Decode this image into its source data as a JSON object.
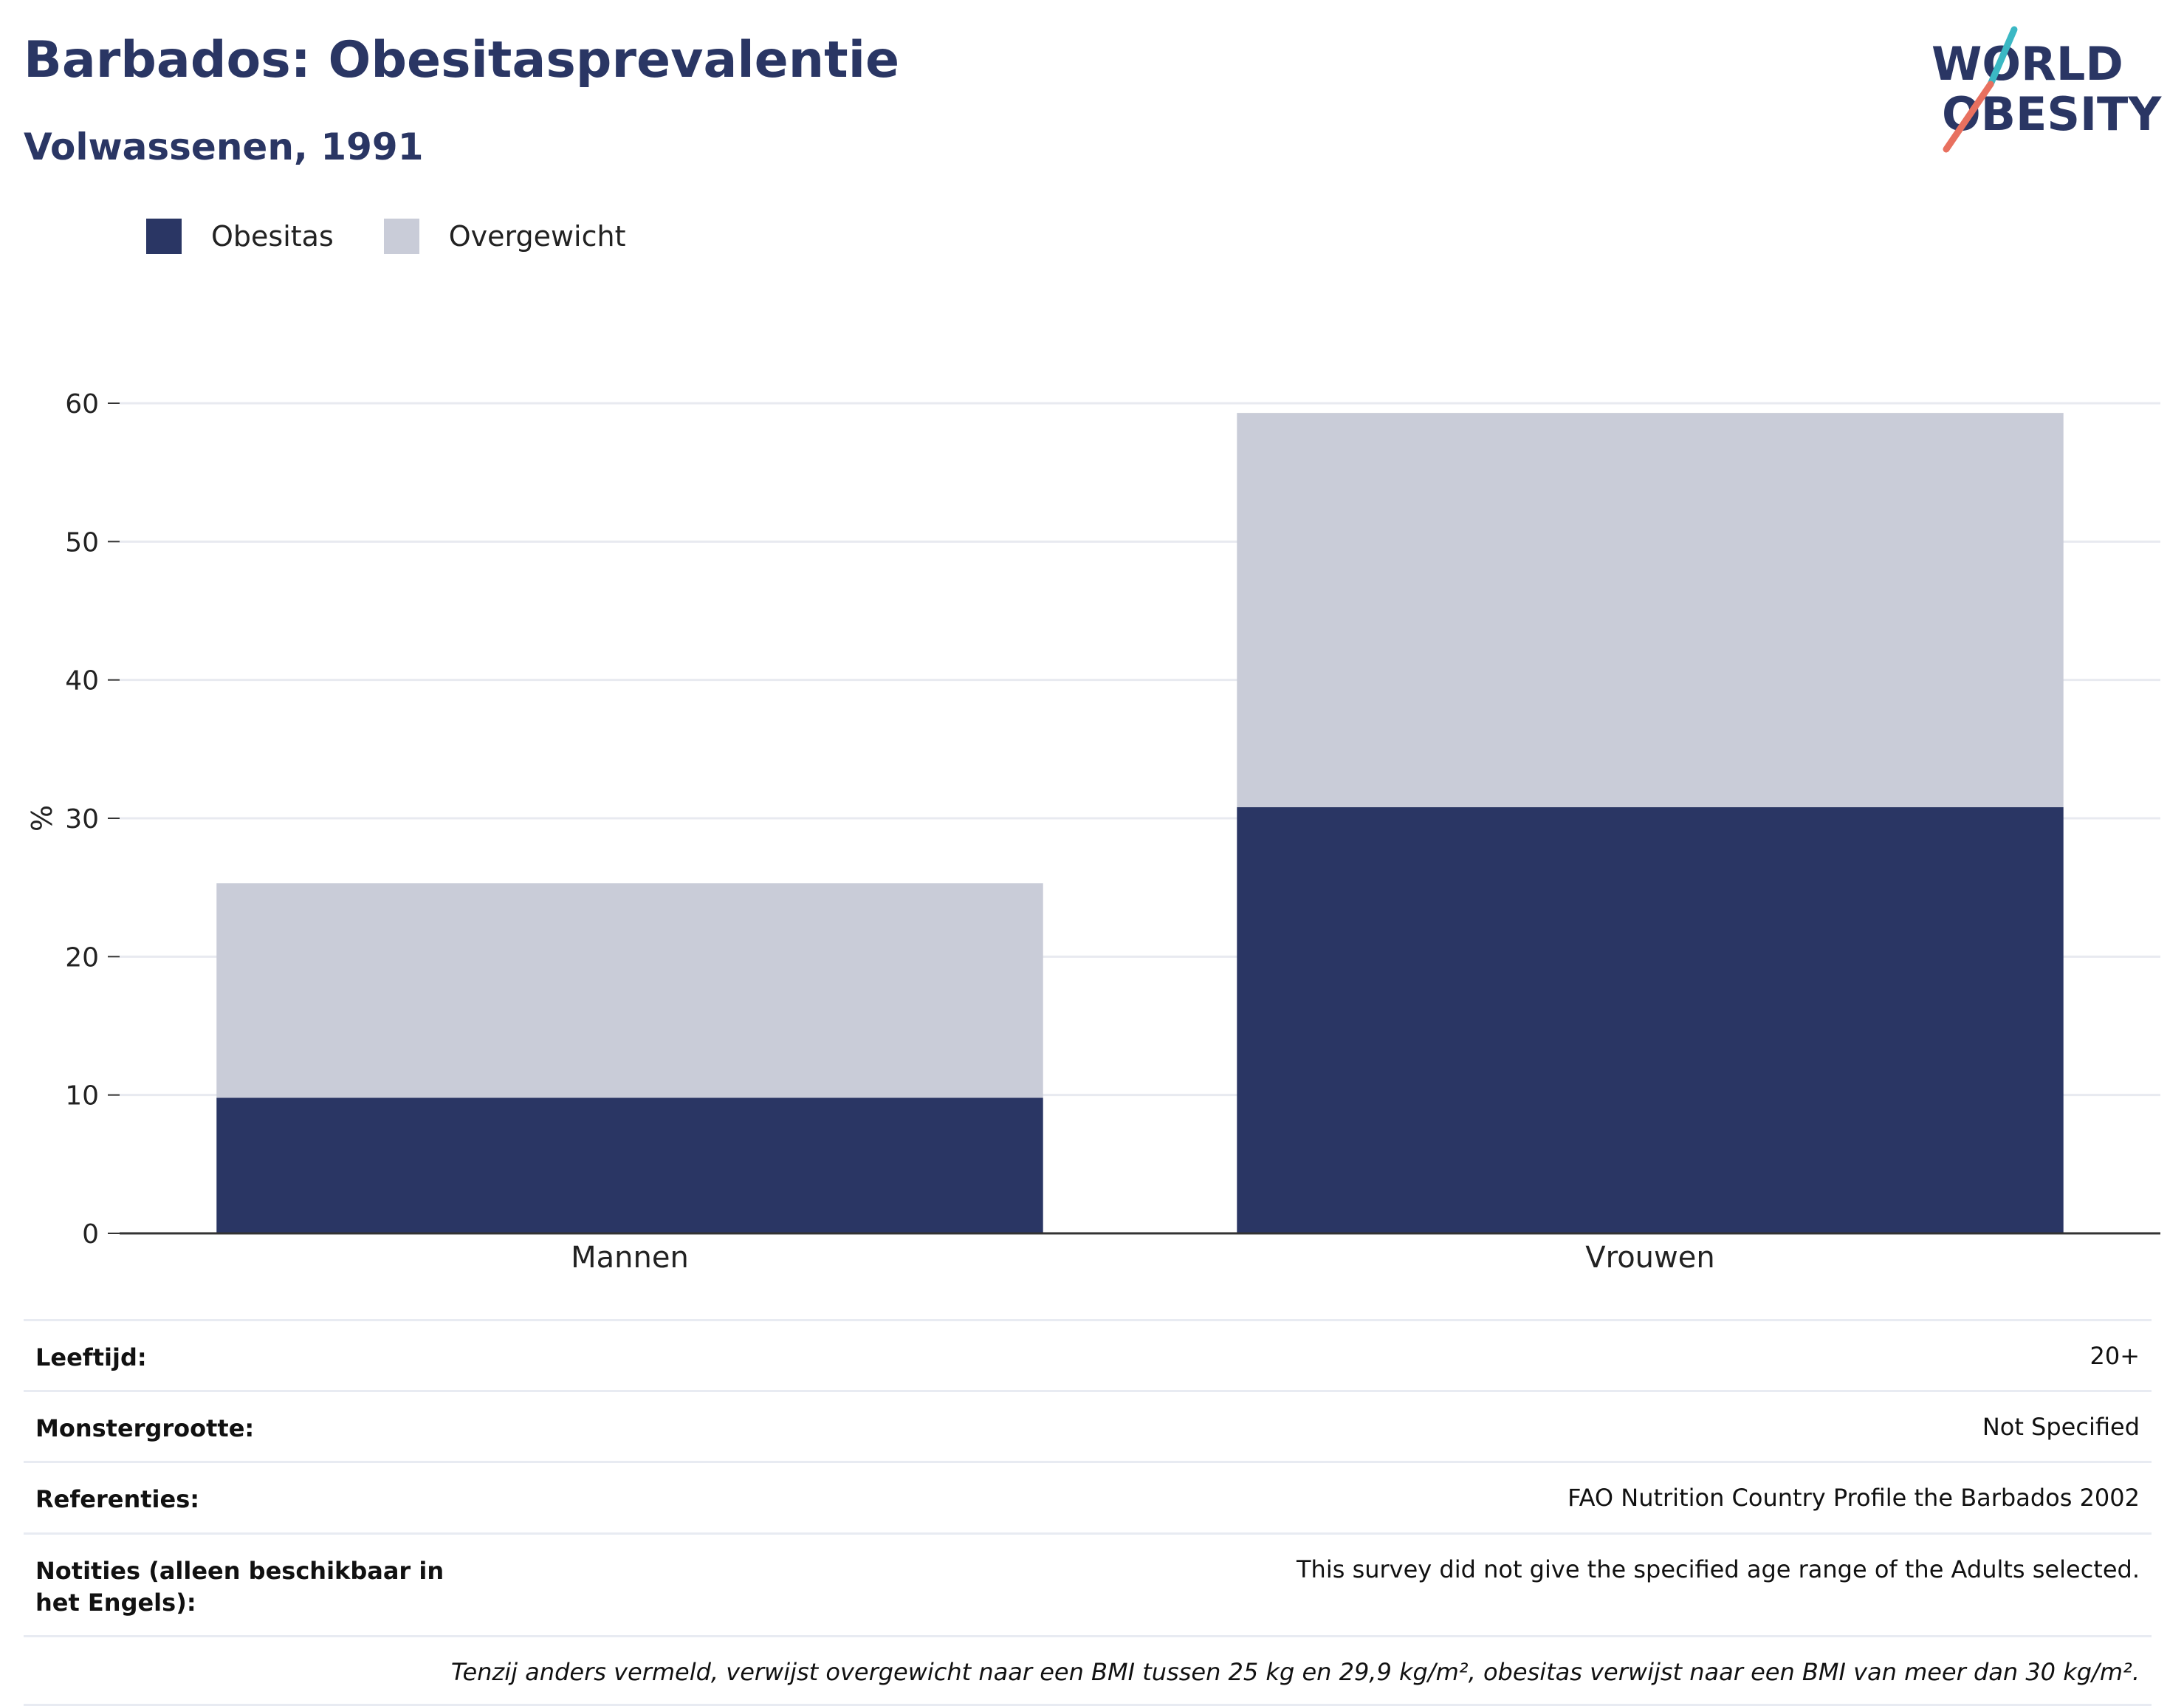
{
  "header": {
    "title": "Barbados: Obesitasprevalentie",
    "subtitle": "Volwassenen, 1991"
  },
  "logo": {
    "line1": "WORLD",
    "line2": "OBESITY",
    "colors": {
      "text": "#2a3664",
      "accent_teal": "#3bb8c4",
      "accent_red": "#e8705f"
    }
  },
  "legend": [
    {
      "label": "Obesitas",
      "color": "#2a3664"
    },
    {
      "label": "Overgewicht",
      "color": "#c9ccd8"
    }
  ],
  "chart_data": {
    "type": "bar",
    "stacked": true,
    "categories": [
      "Mannen",
      "Vrouwen"
    ],
    "series": [
      {
        "name": "Obesitas",
        "values": [
          9.8,
          30.8
        ],
        "color": "#2a3664"
      },
      {
        "name": "Overgewicht",
        "values": [
          15.5,
          28.5
        ],
        "color": "#c9ccd8"
      }
    ],
    "ylabel": "%",
    "ylim": [
      0,
      60
    ],
    "yticks": [
      0,
      10,
      20,
      30,
      40,
      50,
      60
    ],
    "grid": true,
    "legend_position": "top-left"
  },
  "info": [
    {
      "label": "Leeftijd:",
      "value": "20+"
    },
    {
      "label": "Monstergrootte:",
      "value": "Not Specified"
    },
    {
      "label": "Referenties:",
      "value": "FAO Nutrition Country Profile the Barbados 2002"
    },
    {
      "label": "Notities (alleen beschikbaar in het Engels):",
      "value": "This survey did not give the specified age range of the Adults selected."
    }
  ],
  "footnote": "Tenzij anders vermeld, verwijst overgewicht naar een BMI tussen 25 kg en 29,9 kg/m², obesitas verwijst naar een BMI van meer dan 30 kg/m²."
}
